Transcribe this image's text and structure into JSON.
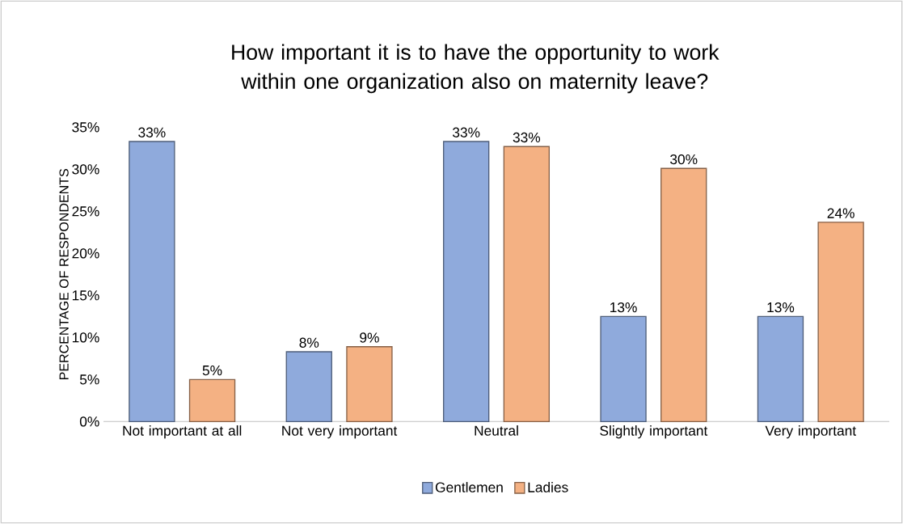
{
  "chart_data": {
    "type": "bar",
    "title": "How important it is to have the opportunity to work within one organization also on maternity leave?",
    "ylabel": "PERCENTAGE OF RESPONDENTS",
    "categories": [
      "Not important at all",
      "Not very important",
      "Neutral",
      "Slightly important",
      "Very important"
    ],
    "series": [
      {
        "name": "Gentlemen",
        "color": "#8faadc",
        "values": [
          33.3,
          8.3,
          33.3,
          12.5,
          12.5
        ],
        "value_labels": [
          "33%",
          "8%",
          "33%",
          "13%",
          "13%"
        ]
      },
      {
        "name": "Ladies",
        "color": "#f4b183",
        "values": [
          5.0,
          8.9,
          32.7,
          30.1,
          23.7
        ],
        "value_labels": [
          "5%",
          "9%",
          "33%",
          "30%",
          "24%"
        ]
      }
    ],
    "ylim": [
      0,
      35
    ],
    "yticks": [
      {
        "value": 0,
        "label": "0%"
      },
      {
        "value": 5,
        "label": "5%"
      },
      {
        "value": 10,
        "label": "10%"
      },
      {
        "value": 15,
        "label": "15%"
      },
      {
        "value": 20,
        "label": "20%"
      },
      {
        "value": 25,
        "label": "25%"
      },
      {
        "value": 30,
        "label": "30%"
      },
      {
        "value": 35,
        "label": "35%"
      }
    ],
    "grid": false,
    "legend": "bottom"
  }
}
